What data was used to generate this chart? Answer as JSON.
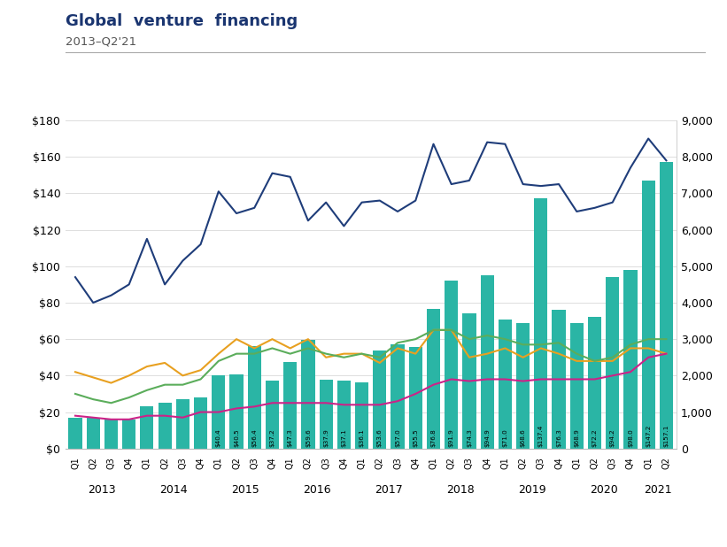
{
  "title": "Global  venture  financing",
  "subtitle": "2013–Q2'21",
  "quarters": [
    "Q1",
    "Q2",
    "Q3",
    "Q4",
    "Q1",
    "Q2",
    "Q3",
    "Q4",
    "Q1",
    "Q2",
    "Q3",
    "Q4",
    "Q1",
    "Q2",
    "Q3",
    "Q4",
    "Q1",
    "Q2",
    "Q3",
    "Q4",
    "Q1",
    "Q2",
    "Q3",
    "Q4",
    "Q1",
    "Q2",
    "Q3",
    "Q4",
    "Q1",
    "Q2",
    "Q3",
    "Q4",
    "Q1",
    "Q2"
  ],
  "years": [
    2013,
    2013,
    2013,
    2013,
    2014,
    2014,
    2014,
    2014,
    2015,
    2015,
    2015,
    2015,
    2016,
    2016,
    2016,
    2016,
    2017,
    2017,
    2017,
    2017,
    2018,
    2018,
    2018,
    2018,
    2019,
    2019,
    2019,
    2019,
    2020,
    2020,
    2020,
    2020,
    2021,
    2021
  ],
  "deal_value": [
    17,
    17,
    16,
    16,
    23,
    25,
    27,
    28,
    40.4,
    40.5,
    56.4,
    37.2,
    47.3,
    59.6,
    37.9,
    37.1,
    36.1,
    53.6,
    57.0,
    55.5,
    76.8,
    91.9,
    74.3,
    94.9,
    71.0,
    68.6,
    137.4,
    76.3,
    68.9,
    72.2,
    94.2,
    98.0,
    147.2,
    157.1
  ],
  "deal_value_labels": [
    "",
    "",
    "",
    "",
    "",
    "",
    "",
    "",
    "$40.4",
    "$40.5",
    "$56.4",
    "$37.2",
    "$47.3",
    "$59.6",
    "$37.9",
    "$37.1",
    "$36.1",
    "$53.6",
    "$57.0",
    "$55.5",
    "$76.8",
    "$91.9",
    "$74.3",
    "$94.9",
    "$71.0",
    "$68.6",
    "$137.4",
    "$76.3",
    "$68.9",
    "$72.2",
    "$94.2",
    "$98.0",
    "$147.2",
    "$157.1"
  ],
  "deal_count": [
    4700,
    4000,
    4200,
    4500,
    5750,
    4500,
    5150,
    5600,
    7050,
    6450,
    6600,
    7550,
    7450,
    6250,
    6750,
    6100,
    6750,
    6800,
    6500,
    6800,
    8350,
    7250,
    7350,
    8400,
    8350,
    7250,
    7200,
    7250,
    6500,
    6600,
    6750,
    7700,
    8500,
    7900
  ],
  "angel_seed": [
    2100,
    1950,
    1800,
    2000,
    2250,
    2350,
    2000,
    2150,
    2600,
    3000,
    2750,
    3000,
    2750,
    3000,
    2500,
    2600,
    2600,
    2350,
    2750,
    2600,
    3250,
    3250,
    2500,
    2600,
    2750,
    2500,
    2750,
    2600,
    2400,
    2400,
    2400,
    2750,
    2750,
    2600
  ],
  "early_vc": [
    1500,
    1350,
    1250,
    1400,
    1600,
    1750,
    1750,
    1900,
    2400,
    2600,
    2600,
    2750,
    2600,
    2750,
    2600,
    2500,
    2600,
    2500,
    2900,
    3000,
    3250,
    3250,
    3000,
    3100,
    3000,
    2850,
    2850,
    2900,
    2600,
    2400,
    2500,
    2850,
    3000,
    3000
  ],
  "later_vc": [
    900,
    850,
    800,
    800,
    900,
    900,
    850,
    1000,
    1000,
    1100,
    1150,
    1250,
    1250,
    1250,
    1250,
    1200,
    1200,
    1200,
    1300,
    1500,
    1750,
    1900,
    1850,
    1900,
    1900,
    1850,
    1900,
    1900,
    1900,
    1900,
    2000,
    2100,
    2500,
    2600
  ],
  "bar_color": "#2AB5A5",
  "deal_count_color": "#1F3D7A",
  "angel_seed_color": "#E8A020",
  "early_vc_color": "#5BAD5B",
  "later_vc_color": "#CC2288",
  "bg_color": "#FFFFFF",
  "left_ylim": [
    0,
    180
  ],
  "right_ylim": [
    0,
    9000
  ],
  "left_yticks": [
    0,
    20,
    40,
    60,
    80,
    100,
    120,
    140,
    160,
    180
  ],
  "right_yticks": [
    0,
    1000,
    2000,
    3000,
    4000,
    5000,
    6000,
    7000,
    8000,
    9000
  ]
}
